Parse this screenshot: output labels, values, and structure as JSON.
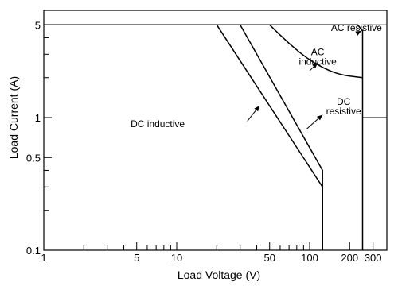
{
  "chart_data": {
    "type": "line",
    "title": "",
    "xlabel": "Load  Voltage (V)",
    "ylabel": "Load Current (A)",
    "x_scale": "log",
    "y_scale": "log",
    "xlim": [
      1,
      400
    ],
    "ylim": [
      0.1,
      6
    ],
    "grid": false,
    "x_ticks": [
      {
        "value": 1,
        "label": "1"
      },
      {
        "value": 2,
        "label": ""
      },
      {
        "value": 3,
        "label": ""
      },
      {
        "value": 4,
        "label": ""
      },
      {
        "value": 5,
        "label": "5"
      },
      {
        "value": 6,
        "label": ""
      },
      {
        "value": 7,
        "label": ""
      },
      {
        "value": 8,
        "label": ""
      },
      {
        "value": 9,
        "label": ""
      },
      {
        "value": 10,
        "label": "10"
      },
      {
        "value": 20,
        "label": ""
      },
      {
        "value": 30,
        "label": ""
      },
      {
        "value": 40,
        "label": ""
      },
      {
        "value": 50,
        "label": "50"
      },
      {
        "value": 60,
        "label": ""
      },
      {
        "value": 70,
        "label": ""
      },
      {
        "value": 80,
        "label": ""
      },
      {
        "value": 90,
        "label": ""
      },
      {
        "value": 100,
        "label": "100"
      },
      {
        "value": 200,
        "label": "200"
      },
      {
        "value": 250,
        "label": ""
      },
      {
        "value": 300,
        "label": "300"
      }
    ],
    "y_ticks": [
      {
        "value": 0.1,
        "label": "0.1"
      },
      {
        "value": 0.2,
        "label": ""
      },
      {
        "value": 0.3,
        "label": ""
      },
      {
        "value": 0.4,
        "label": ""
      },
      {
        "value": 0.5,
        "label": "0.5"
      },
      {
        "value": 1,
        "label": "1"
      },
      {
        "value": 2,
        "label": ""
      },
      {
        "value": 3,
        "label": ""
      },
      {
        "value": 4,
        "label": ""
      },
      {
        "value": 5,
        "label": "5"
      }
    ],
    "series": [
      {
        "name": "DC inductive",
        "points": [
          [
            1,
            5
          ],
          [
            20,
            5
          ],
          [
            125,
            0.3
          ],
          [
            125,
            0.1
          ]
        ]
      },
      {
        "name": "DC resistive",
        "points": [
          [
            30,
            5
          ],
          [
            125,
            0.4
          ],
          [
            125,
            0.1
          ]
        ]
      },
      {
        "name": "AC inductive",
        "points": [
          [
            50,
            5
          ],
          [
            70,
            3.6
          ],
          [
            100,
            2.7
          ],
          [
            140,
            2.25
          ],
          [
            180,
            2.08
          ],
          [
            250,
            2
          ]
        ]
      },
      {
        "name": "AC resistive",
        "points": [
          [
            1,
            5
          ],
          [
            230,
            5
          ],
          [
            250,
            4.5
          ],
          [
            250,
            0.1
          ]
        ]
      }
    ],
    "annotations": [
      {
        "lines": [
          "AC resistive"
        ],
        "text_at": [
          350,
          4.5
        ],
        "arrow_from": [
          225,
          4.3
        ],
        "arrow_to": [
          245,
          4.5
        ],
        "anchor": "end"
      },
      {
        "lines": [
          "AC",
          "inductive"
        ],
        "text_at": [
          115,
          2.95
        ],
        "arrow_from": [
          100,
          2.25
        ],
        "arrow_to": [
          115,
          2.6
        ],
        "anchor": "middle"
      },
      {
        "lines": [
          "DC",
          "resistive"
        ],
        "text_at": [
          180,
          1.25
        ],
        "arrow_from": [
          95,
          0.82
        ],
        "arrow_to": [
          125,
          1.05
        ],
        "anchor": "middle"
      },
      {
        "lines": [
          "DC inductive"
        ],
        "text_at": [
          4.5,
          0.85
        ],
        "arrow_from": [
          34,
          0.94
        ],
        "arrow_to": [
          42,
          1.23
        ],
        "anchor": "start"
      }
    ],
    "extra_segments": [
      {
        "from": [
          250,
          1
        ],
        "to": [
          400,
          1
        ]
      },
      {
        "from": [
          250,
          5
        ],
        "to": [
          400,
          5
        ]
      }
    ]
  }
}
